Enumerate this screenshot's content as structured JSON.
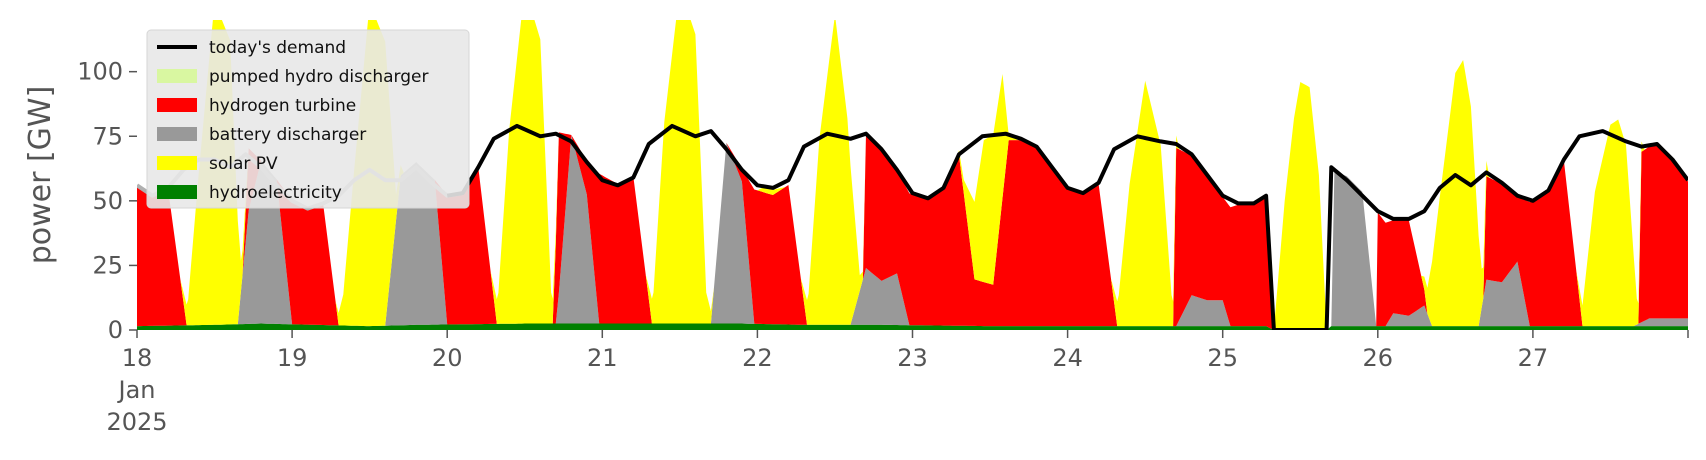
{
  "chart_data": {
    "type": "area",
    "ylabel": "power [GW]",
    "xlabel": "",
    "x_start_day": 18,
    "x_end_day": 28,
    "ylim": [
      0,
      120
    ],
    "yticks": [
      0,
      25,
      50,
      75,
      100
    ],
    "xtick_labels": [
      {
        "day": 18,
        "lines": [
          "18",
          "Jan",
          "2025"
        ]
      },
      {
        "day": 19,
        "lines": [
          "19"
        ]
      },
      {
        "day": 20,
        "lines": [
          "20"
        ]
      },
      {
        "day": 21,
        "lines": [
          "21"
        ]
      },
      {
        "day": 22,
        "lines": [
          "22"
        ]
      },
      {
        "day": 23,
        "lines": [
          "23"
        ]
      },
      {
        "day": 24,
        "lines": [
          "24"
        ]
      },
      {
        "day": 25,
        "lines": [
          "25"
        ]
      },
      {
        "day": 26,
        "lines": [
          "26"
        ]
      },
      {
        "day": 27,
        "lines": [
          "27"
        ]
      }
    ],
    "legend_position": "top-left",
    "legend": [
      {
        "label": "today's demand",
        "kind": "line",
        "color": "#000000"
      },
      {
        "label": "pumped hydro discharger",
        "kind": "patch",
        "color": "#d9f7a1"
      },
      {
        "label": "hydrogen turbine",
        "kind": "patch",
        "color": "#ff0000"
      },
      {
        "label": "battery discharger",
        "kind": "patch",
        "color": "#999999"
      },
      {
        "label": "solar PV",
        "kind": "patch",
        "color": "#ffff00"
      },
      {
        "label": "hydroelectricity",
        "kind": "patch",
        "color": "#008000"
      }
    ],
    "demand": [
      [
        18.0,
        56
      ],
      [
        18.1,
        52
      ],
      [
        18.2,
        55
      ],
      [
        18.3,
        62
      ],
      [
        18.4,
        66
      ],
      [
        18.5,
        66
      ],
      [
        18.6,
        63
      ],
      [
        18.7,
        68
      ],
      [
        18.8,
        63
      ],
      [
        18.9,
        56
      ],
      [
        19.0,
        50
      ],
      [
        19.1,
        47
      ],
      [
        19.2,
        49
      ],
      [
        19.3,
        52
      ],
      [
        19.4,
        58
      ],
      [
        19.5,
        62
      ],
      [
        19.6,
        58
      ],
      [
        19.7,
        58
      ],
      [
        19.8,
        63
      ],
      [
        19.9,
        57
      ],
      [
        20.0,
        52
      ],
      [
        20.1,
        53
      ],
      [
        20.2,
        63
      ],
      [
        20.3,
        74
      ],
      [
        20.45,
        79
      ],
      [
        20.6,
        75
      ],
      [
        20.7,
        76
      ],
      [
        20.8,
        73
      ],
      [
        20.9,
        65
      ],
      [
        21.0,
        58
      ],
      [
        21.1,
        56
      ],
      [
        21.2,
        59
      ],
      [
        21.3,
        72
      ],
      [
        21.45,
        79
      ],
      [
        21.6,
        75
      ],
      [
        21.7,
        77
      ],
      [
        21.8,
        70
      ],
      [
        21.9,
        62
      ],
      [
        22.0,
        56
      ],
      [
        22.1,
        55
      ],
      [
        22.2,
        58
      ],
      [
        22.3,
        71
      ],
      [
        22.45,
        76
      ],
      [
        22.6,
        74
      ],
      [
        22.7,
        76
      ],
      [
        22.8,
        70
      ],
      [
        22.9,
        62
      ],
      [
        23.0,
        53
      ],
      [
        23.1,
        51
      ],
      [
        23.2,
        55
      ],
      [
        23.3,
        68
      ],
      [
        23.45,
        75
      ],
      [
        23.6,
        76
      ],
      [
        23.7,
        74
      ],
      [
        23.8,
        71
      ],
      [
        23.9,
        63
      ],
      [
        24.0,
        55
      ],
      [
        24.1,
        53
      ],
      [
        24.2,
        57
      ],
      [
        24.3,
        70
      ],
      [
        24.45,
        75
      ],
      [
        24.6,
        73
      ],
      [
        24.7,
        72
      ],
      [
        24.8,
        68
      ],
      [
        24.9,
        60
      ],
      [
        25.0,
        52
      ],
      [
        25.1,
        49
      ],
      [
        25.2,
        49
      ],
      [
        25.28,
        52
      ],
      [
        25.33,
        0
      ],
      [
        25.67,
        0
      ],
      [
        25.7,
        63
      ],
      [
        25.8,
        58
      ],
      [
        25.9,
        52
      ],
      [
        26.0,
        46
      ],
      [
        26.1,
        43
      ],
      [
        26.2,
        43
      ],
      [
        26.3,
        46
      ],
      [
        26.4,
        55
      ],
      [
        26.5,
        60
      ],
      [
        26.6,
        56
      ],
      [
        26.7,
        61
      ],
      [
        26.8,
        57
      ],
      [
        26.9,
        52
      ],
      [
        27.0,
        50
      ],
      [
        27.1,
        54
      ],
      [
        27.2,
        66
      ],
      [
        27.3,
        75
      ],
      [
        27.45,
        77
      ],
      [
        27.6,
        73
      ],
      [
        27.7,
        71
      ],
      [
        27.8,
        72
      ],
      [
        27.9,
        66
      ],
      [
        28.0,
        58
      ]
    ],
    "demand_grey_until_day": 20.1,
    "series": [
      {
        "name": "hydroelectricity",
        "color": "#008000",
        "values": [
          [
            18.0,
            1.5
          ],
          [
            18.5,
            2.0
          ],
          [
            18.8,
            2.5
          ],
          [
            19.5,
            1.5
          ],
          [
            19.8,
            2.0
          ],
          [
            20.5,
            2.5
          ],
          [
            20.9,
            2.5
          ],
          [
            21.5,
            2.5
          ],
          [
            21.9,
            2.5
          ],
          [
            22.3,
            2.0
          ],
          [
            22.8,
            2.0
          ],
          [
            23.5,
            1.5
          ],
          [
            24.5,
            1.5
          ],
          [
            25.28,
            1.5
          ],
          [
            25.33,
            0.0
          ],
          [
            25.67,
            0.0
          ],
          [
            25.7,
            1.5
          ],
          [
            26.5,
            1.5
          ],
          [
            27.0,
            1.5
          ],
          [
            27.5,
            1.5
          ],
          [
            28.0,
            1.5
          ]
        ]
      },
      {
        "name": "battery discharger",
        "color": "#999999",
        "values": [
          [
            18.0,
            0
          ],
          [
            18.65,
            0
          ],
          [
            18.72,
            44
          ],
          [
            18.8,
            63
          ],
          [
            18.9,
            56
          ],
          [
            19.0,
            0
          ],
          [
            19.6,
            0
          ],
          [
            19.7,
            58
          ],
          [
            19.8,
            63
          ],
          [
            19.92,
            56
          ],
          [
            20.0,
            0
          ],
          [
            20.7,
            0
          ],
          [
            20.72,
            12
          ],
          [
            20.8,
            73
          ],
          [
            20.9,
            50
          ],
          [
            20.98,
            0
          ],
          [
            21.7,
            0
          ],
          [
            21.8,
            70
          ],
          [
            21.9,
            55
          ],
          [
            21.98,
            0
          ],
          [
            22.6,
            0
          ],
          [
            22.7,
            22
          ],
          [
            22.8,
            17
          ],
          [
            22.9,
            20
          ],
          [
            22.98,
            0
          ],
          [
            24.7,
            0
          ],
          [
            24.8,
            12
          ],
          [
            24.9,
            10
          ],
          [
            25.0,
            10
          ],
          [
            25.05,
            0
          ],
          [
            25.7,
            0
          ],
          [
            25.72,
            60
          ],
          [
            25.8,
            58
          ],
          [
            25.9,
            52
          ],
          [
            25.99,
            0
          ],
          [
            26.05,
            0
          ],
          [
            26.1,
            5
          ],
          [
            26.2,
            4
          ],
          [
            26.3,
            8
          ],
          [
            26.35,
            0
          ],
          [
            26.65,
            0
          ],
          [
            26.7,
            18
          ],
          [
            26.8,
            17
          ],
          [
            26.9,
            25
          ],
          [
            26.98,
            0
          ],
          [
            27.65,
            0
          ],
          [
            27.75,
            3
          ],
          [
            27.9,
            3
          ],
          [
            28.0,
            3
          ]
        ]
      },
      {
        "name": "hydrogen turbine",
        "color": "#ff0000",
        "values": [
          [
            18.0,
            54
          ],
          [
            18.1,
            50
          ],
          [
            18.2,
            53
          ],
          [
            18.32,
            0
          ],
          [
            18.68,
            0
          ],
          [
            18.72,
            24
          ],
          [
            18.8,
            0
          ],
          [
            18.9,
            0
          ],
          [
            19.0,
            48
          ],
          [
            19.1,
            45
          ],
          [
            19.2,
            47
          ],
          [
            19.3,
            0
          ],
          [
            19.62,
            0
          ],
          [
            19.7,
            0
          ],
          [
            19.92,
            0
          ],
          [
            20.0,
            50
          ],
          [
            20.1,
            51
          ],
          [
            20.2,
            61
          ],
          [
            20.32,
            0
          ],
          [
            20.68,
            0
          ],
          [
            20.72,
            62
          ],
          [
            20.8,
            0
          ],
          [
            20.9,
            13
          ],
          [
            20.98,
            58
          ],
          [
            21.1,
            54
          ],
          [
            21.2,
            57
          ],
          [
            21.32,
            0
          ],
          [
            21.68,
            0
          ],
          [
            21.8,
            0
          ],
          [
            21.9,
            5
          ],
          [
            21.98,
            52
          ],
          [
            22.1,
            50
          ],
          [
            22.2,
            54
          ],
          [
            22.32,
            0
          ],
          [
            22.68,
            0
          ],
          [
            22.7,
            52
          ],
          [
            22.8,
            51
          ],
          [
            22.9,
            40
          ],
          [
            22.98,
            51
          ],
          [
            23.1,
            49
          ],
          [
            23.2,
            53
          ],
          [
            23.3,
            66
          ],
          [
            23.4,
            18
          ],
          [
            23.52,
            16
          ],
          [
            23.62,
            72
          ],
          [
            23.7,
            72
          ],
          [
            23.8,
            69
          ],
          [
            23.9,
            61
          ],
          [
            24.0,
            53
          ],
          [
            24.1,
            51
          ],
          [
            24.2,
            55
          ],
          [
            24.32,
            0
          ],
          [
            24.68,
            0
          ],
          [
            24.7,
            69
          ],
          [
            24.8,
            54
          ],
          [
            24.9,
            48
          ],
          [
            25.0,
            40
          ],
          [
            25.05,
            46
          ],
          [
            25.1,
            47
          ],
          [
            25.2,
            47
          ],
          [
            25.28,
            50
          ],
          [
            25.33,
            0
          ],
          [
            25.67,
            0
          ],
          [
            25.7,
            0
          ],
          [
            25.99,
            0
          ],
          [
            26.0,
            44
          ],
          [
            26.1,
            36
          ],
          [
            26.2,
            37
          ],
          [
            26.32,
            0
          ],
          [
            26.68,
            0
          ],
          [
            26.7,
            40
          ],
          [
            26.8,
            38
          ],
          [
            26.9,
            25
          ],
          [
            26.98,
            48
          ],
          [
            27.1,
            52
          ],
          [
            27.2,
            64
          ],
          [
            27.32,
            0
          ],
          [
            27.68,
            0
          ],
          [
            27.7,
            66
          ],
          [
            27.8,
            67
          ],
          [
            27.9,
            61
          ],
          [
            28.0,
            53
          ]
        ]
      },
      {
        "name": "solar PV",
        "color": "#ffff00",
        "values": [
          [
            18.0,
            0
          ],
          [
            18.28,
            0
          ],
          [
            18.33,
            10
          ],
          [
            18.4,
            60
          ],
          [
            18.5,
            125
          ],
          [
            18.6,
            110
          ],
          [
            18.67,
            12
          ],
          [
            18.72,
            0
          ],
          [
            19.28,
            0
          ],
          [
            19.33,
            12
          ],
          [
            19.4,
            60
          ],
          [
            19.5,
            125
          ],
          [
            19.6,
            110
          ],
          [
            19.67,
            10
          ],
          [
            19.72,
            0
          ],
          [
            20.28,
            0
          ],
          [
            20.33,
            12
          ],
          [
            20.4,
            75
          ],
          [
            20.5,
            130
          ],
          [
            20.6,
            110
          ],
          [
            20.67,
            12
          ],
          [
            20.72,
            0
          ],
          [
            21.28,
            0
          ],
          [
            21.33,
            12
          ],
          [
            21.4,
            78
          ],
          [
            21.5,
            130
          ],
          [
            21.6,
            112
          ],
          [
            21.67,
            12
          ],
          [
            21.72,
            0
          ],
          [
            22.0,
            0
          ],
          [
            22.04,
            2
          ],
          [
            22.1,
            2
          ],
          [
            22.18,
            0
          ],
          [
            22.28,
            0
          ],
          [
            22.33,
            12
          ],
          [
            22.4,
            72
          ],
          [
            22.5,
            120
          ],
          [
            22.58,
            80
          ],
          [
            22.66,
            6
          ],
          [
            22.7,
            0
          ],
          [
            23.28,
            0
          ],
          [
            23.33,
            5
          ],
          [
            23.4,
            30
          ],
          [
            23.46,
            55
          ],
          [
            23.52,
            58
          ],
          [
            23.58,
            48
          ],
          [
            23.62,
            2
          ],
          [
            23.68,
            0
          ],
          [
            23.7,
            1
          ],
          [
            23.8,
            1
          ],
          [
            23.9,
            0
          ],
          [
            24.28,
            0
          ],
          [
            24.33,
            12
          ],
          [
            24.4,
            55
          ],
          [
            24.5,
            95
          ],
          [
            24.6,
            70
          ],
          [
            24.67,
            12
          ],
          [
            24.72,
            0
          ],
          [
            25.33,
            0
          ],
          [
            25.4,
            50
          ],
          [
            25.46,
            82
          ],
          [
            25.5,
            96
          ],
          [
            25.56,
            94
          ],
          [
            25.62,
            60
          ],
          [
            25.67,
            0
          ],
          [
            26.28,
            0
          ],
          [
            26.32,
            10
          ],
          [
            26.4,
            50
          ],
          [
            26.5,
            98
          ],
          [
            26.55,
            103
          ],
          [
            26.6,
            85
          ],
          [
            26.67,
            15
          ],
          [
            26.72,
            0
          ],
          [
            27.28,
            0
          ],
          [
            27.32,
            8
          ],
          [
            27.4,
            52
          ],
          [
            27.5,
            78
          ],
          [
            27.55,
            80
          ],
          [
            27.6,
            70
          ],
          [
            27.67,
            10
          ],
          [
            27.72,
            0
          ],
          [
            28.0,
            0
          ]
        ]
      }
    ]
  }
}
